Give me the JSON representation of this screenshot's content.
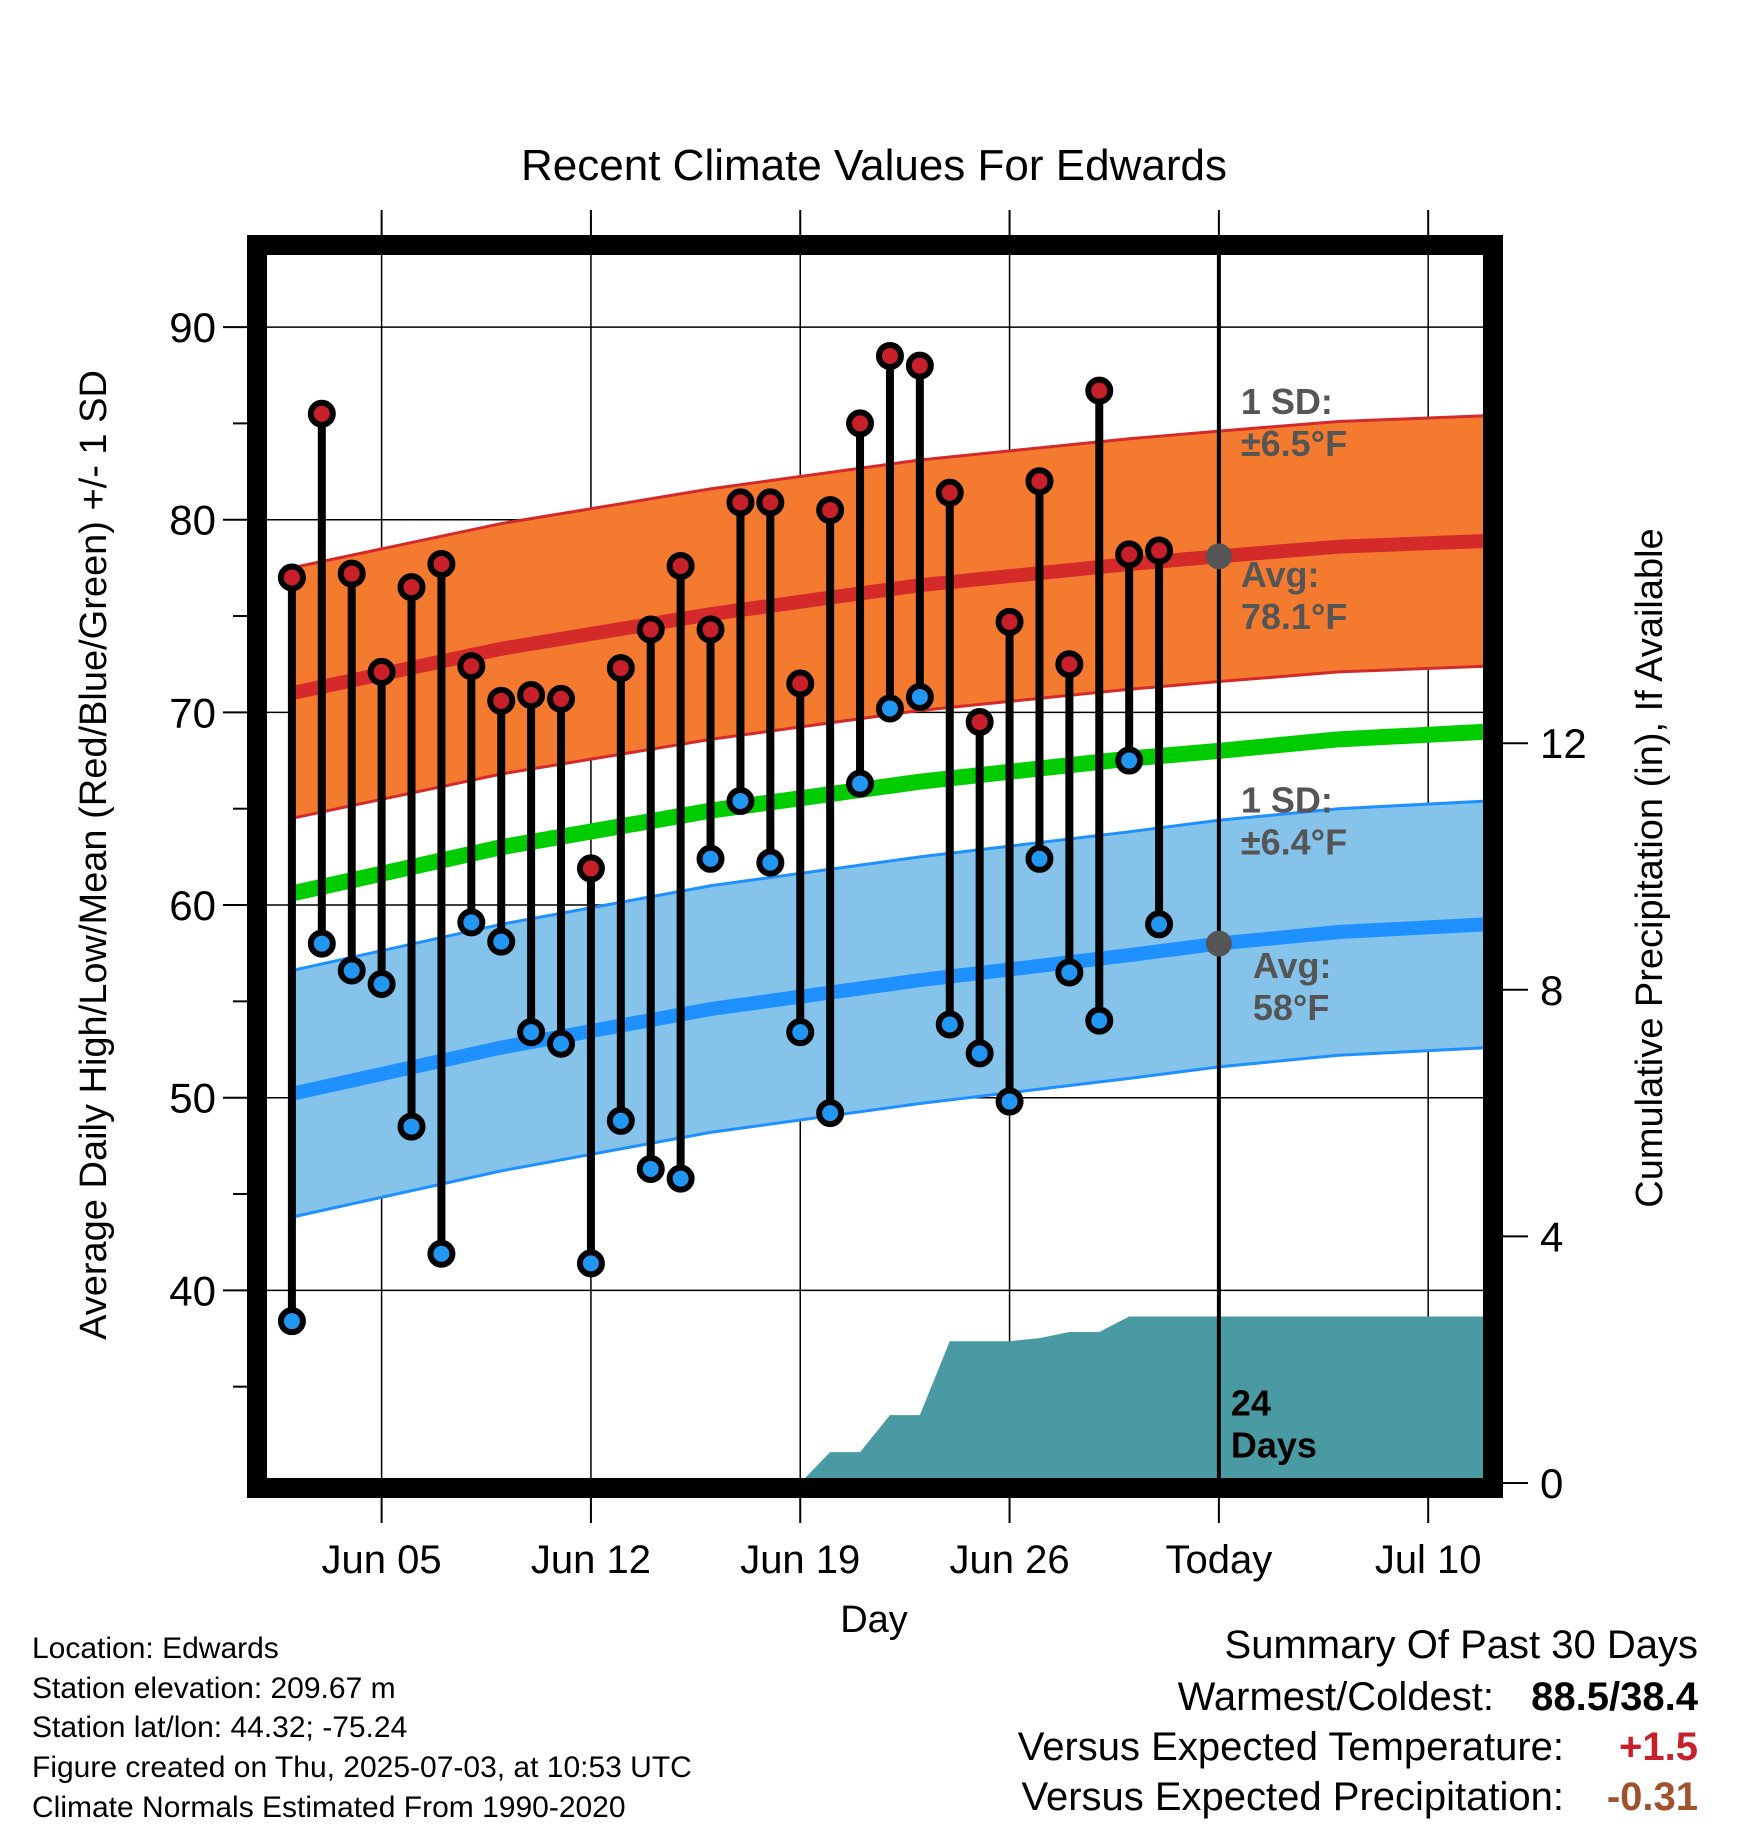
{
  "chart_data": {
    "type": "line",
    "title": "Recent Climate Values For Edwards",
    "xlabel": "Day",
    "ylabel": "Average Daily High/Low/Mean (Red/Blue/Green) +/- 1 SD",
    "y2label": "Cumulative Precipitation (in), If Available",
    "x_range": [
      "2025-06-02",
      "2025-07-12"
    ],
    "xlim_dates": [
      "2025-06-01",
      "2025-07-12"
    ],
    "ylim": [
      30,
      94
    ],
    "y2lim": [
      0,
      20
    ],
    "y_ticks": [
      40,
      50,
      60,
      70,
      80,
      90
    ],
    "y2_ticks": [
      0,
      4,
      8,
      12
    ],
    "x_ticks": [
      {
        "date": "2025-06-05",
        "label": "Jun 05"
      },
      {
        "date": "2025-06-12",
        "label": "Jun 12"
      },
      {
        "date": "2025-06-19",
        "label": "Jun 19"
      },
      {
        "date": "2025-06-26",
        "label": "Jun 26"
      },
      {
        "date": "2025-07-03",
        "label": "Today"
      },
      {
        "date": "2025-07-10",
        "label": "Jul 10"
      }
    ],
    "today": "2025-07-03",
    "grid": true,
    "colors": {
      "high_band": "#f47a30",
      "high_line": "#d42a2a",
      "low_band": "#85c3ea",
      "low_line": "#1e90ff",
      "mean_line": "#00cc00",
      "precip": "#4a9aa4",
      "high_marker": "#c8202a",
      "low_marker": "#2196f3",
      "today_marker": "#555555",
      "annotation": "#555555"
    },
    "normals": {
      "dates": [
        "2025-06-02",
        "2025-06-09",
        "2025-06-16",
        "2025-06-23",
        "2025-06-30",
        "2025-07-03",
        "2025-07-07",
        "2025-07-12"
      ],
      "avg_high": [
        71.0,
        73.3,
        75.1,
        76.6,
        77.7,
        78.1,
        78.6,
        78.9
      ],
      "avg_low": [
        50.2,
        52.6,
        54.6,
        56.1,
        57.4,
        58.0,
        58.6,
        59.0
      ],
      "avg_mean": [
        60.6,
        63.0,
        64.9,
        66.4,
        67.6,
        68.0,
        68.6,
        69.0
      ],
      "high_sd": 6.5,
      "low_sd": 6.4
    },
    "series": [
      {
        "name": "High",
        "x": [
          "2025-06-02",
          "2025-06-03",
          "2025-06-04",
          "2025-06-05",
          "2025-06-06",
          "2025-06-07",
          "2025-06-08",
          "2025-06-09",
          "2025-06-10",
          "2025-06-11",
          "2025-06-12",
          "2025-06-13",
          "2025-06-14",
          "2025-06-15",
          "2025-06-16",
          "2025-06-17",
          "2025-06-18",
          "2025-06-19",
          "2025-06-20",
          "2025-06-21",
          "2025-06-22",
          "2025-06-23",
          "2025-06-24",
          "2025-06-25",
          "2025-06-26",
          "2025-06-27",
          "2025-06-28",
          "2025-06-29",
          "2025-06-30",
          "2025-07-01",
          "2025-07-02"
        ],
        "values": [
          77.0,
          85.5,
          77.2,
          72.1,
          76.5,
          77.7,
          72.4,
          70.6,
          70.9,
          70.7,
          61.9,
          72.3,
          74.3,
          77.6,
          74.3,
          80.9,
          80.9,
          71.5,
          80.5,
          85.0,
          88.5,
          88.0,
          81.4,
          69.5,
          74.7,
          82.0,
          72.5,
          86.7,
          78.2,
          78.4,
          null
        ]
      },
      {
        "name": "Low",
        "x": [
          "2025-06-02",
          "2025-06-03",
          "2025-06-04",
          "2025-06-05",
          "2025-06-06",
          "2025-06-07",
          "2025-06-08",
          "2025-06-09",
          "2025-06-10",
          "2025-06-11",
          "2025-06-12",
          "2025-06-13",
          "2025-06-14",
          "2025-06-15",
          "2025-06-16",
          "2025-06-17",
          "2025-06-18",
          "2025-06-19",
          "2025-06-20",
          "2025-06-21",
          "2025-06-22",
          "2025-06-23",
          "2025-06-24",
          "2025-06-25",
          "2025-06-26",
          "2025-06-27",
          "2025-06-28",
          "2025-06-29",
          "2025-06-30",
          "2025-07-01",
          "2025-07-02"
        ],
        "values": [
          38.4,
          58.0,
          56.6,
          55.9,
          48.5,
          41.9,
          59.1,
          58.1,
          53.4,
          52.8,
          41.4,
          48.8,
          46.3,
          45.8,
          62.4,
          65.4,
          62.2,
          53.4,
          49.2,
          66.3,
          70.2,
          70.8,
          53.8,
          52.3,
          49.8,
          62.4,
          56.5,
          54.0,
          67.5,
          59.0,
          null
        ]
      },
      {
        "name": "Cumulative Precipitation",
        "axis": "right",
        "x": [
          "2025-06-19",
          "2025-06-20",
          "2025-06-21",
          "2025-06-22",
          "2025-06-23",
          "2025-06-24",
          "2025-06-25",
          "2025-06-26",
          "2025-06-27",
          "2025-06-28",
          "2025-06-29",
          "2025-06-30",
          "2025-07-12"
        ],
        "values": [
          0.0,
          0.5,
          0.5,
          1.1,
          1.1,
          2.3,
          2.3,
          2.3,
          2.35,
          2.45,
          2.45,
          2.7,
          2.7
        ]
      }
    ],
    "annotations": [
      {
        "id": "high_sd",
        "text": "1 SD:",
        "text2": "±6.5°F"
      },
      {
        "id": "high_avg",
        "text": "Avg:",
        "text2": "78.1°F"
      },
      {
        "id": "low_sd",
        "text": "1 SD:",
        "text2": "±6.4°F"
      },
      {
        "id": "low_avg",
        "text": "Avg:",
        "text2": "58°F"
      },
      {
        "id": "days",
        "text": "24",
        "text2": "Days"
      }
    ]
  },
  "footer": {
    "location": "Location: Edwards",
    "elevation": "Station elevation: 209.67 m",
    "latlon": "Station lat/lon: 44.32; -75.24",
    "created": "Figure created on Thu, 2025-07-03, at 10:53 UTC",
    "normals": "Climate Normals Estimated From 1990-2020"
  },
  "summary": {
    "title": "Summary Of Past 30 Days",
    "warmest_coldest_label": "Warmest/Coldest:",
    "warmest_coldest_value": "88.5/38.4",
    "temp_label": "Versus Expected Temperature:",
    "temp_value": "+1.5",
    "temp_color": "#c8202a",
    "precip_label": "Versus Expected Precipitation:",
    "precip_value": "-0.31",
    "precip_color": "#a0522d"
  }
}
